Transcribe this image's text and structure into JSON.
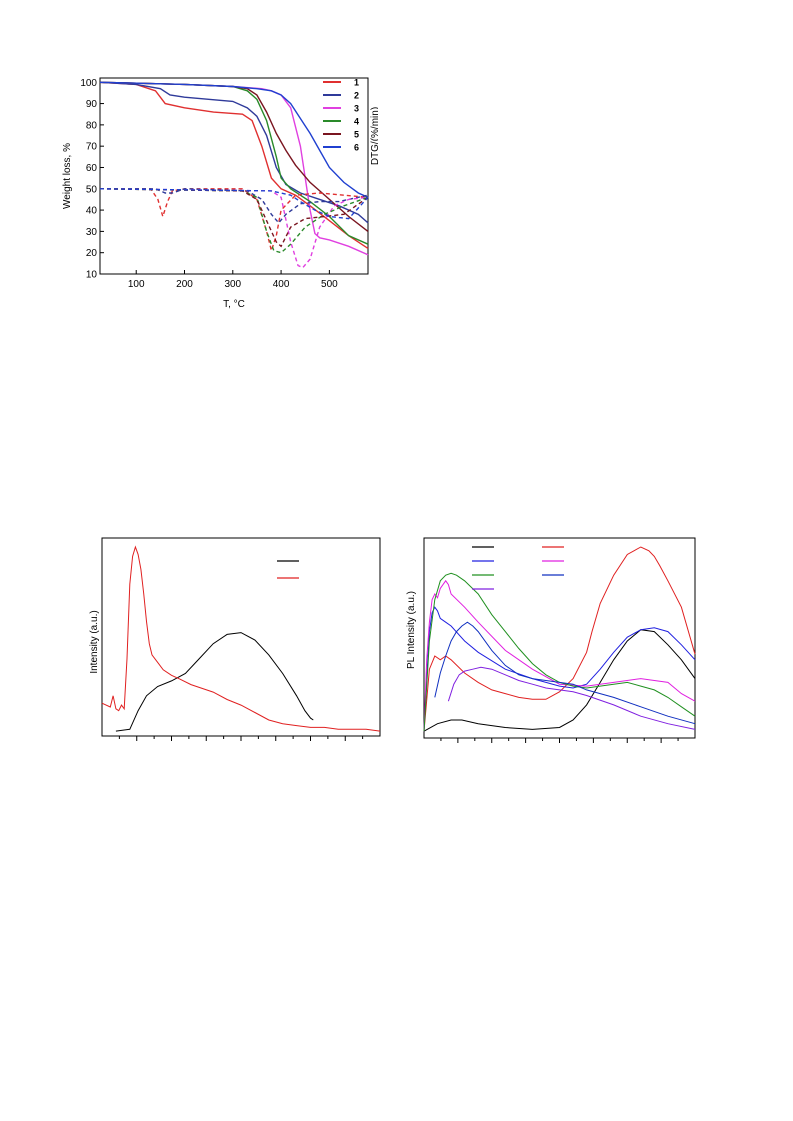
{
  "chart_data": [
    {
      "type": "line",
      "xlabel": "T, °C",
      "ylabel": "Weight loss, %",
      "y2label": "DTG/(%/min)",
      "xlim": [
        25,
        580
      ],
      "ylim": [
        10,
        102
      ],
      "xticks": [
        100,
        200,
        300,
        400,
        500
      ],
      "yticks": [
        10,
        20,
        30,
        40,
        50,
        60,
        70,
        80,
        90,
        100
      ],
      "legend_position": "top-right",
      "series": [
        {
          "name": "1",
          "color": "#e03030",
          "style": "solid",
          "x": [
            25,
            100,
            140,
            160,
            200,
            260,
            320,
            340,
            360,
            380,
            400,
            430,
            460,
            500,
            540,
            580
          ],
          "y": [
            100,
            99,
            96,
            90,
            88,
            86,
            85,
            82,
            70,
            55,
            50,
            47,
            42,
            35,
            28,
            22
          ]
        },
        {
          "name": "2",
          "color": "#2f3a9a",
          "style": "solid",
          "x": [
            25,
            100,
            150,
            170,
            200,
            250,
            300,
            330,
            350,
            370,
            390,
            410,
            440,
            480,
            520,
            560,
            580
          ],
          "y": [
            100,
            99,
            97,
            94,
            93,
            92,
            91,
            88,
            84,
            75,
            60,
            52,
            48,
            45,
            42,
            38,
            34
          ]
        },
        {
          "name": "3",
          "color": "#e040e0",
          "style": "solid",
          "x": [
            25,
            200,
            300,
            360,
            380,
            400,
            420,
            440,
            460,
            470,
            480,
            500,
            540,
            580
          ],
          "y": [
            100,
            99,
            98,
            97,
            96,
            94,
            88,
            70,
            40,
            29,
            27,
            26,
            23,
            19
          ]
        },
        {
          "name": "4",
          "color": "#2a8a2a",
          "style": "solid",
          "x": [
            25,
            200,
            300,
            330,
            350,
            370,
            390,
            400,
            420,
            460,
            500,
            540,
            580
          ],
          "y": [
            100,
            99,
            98,
            96,
            92,
            82,
            65,
            55,
            50,
            44,
            37,
            28,
            24
          ]
        },
        {
          "name": "5",
          "color": "#7a1520",
          "style": "solid",
          "x": [
            25,
            200,
            300,
            330,
            350,
            370,
            390,
            410,
            430,
            460,
            500,
            540,
            580
          ],
          "y": [
            100,
            99,
            98,
            97,
            94,
            86,
            76,
            68,
            61,
            53,
            45,
            37,
            30
          ]
        },
        {
          "name": "6",
          "color": "#2040d0",
          "style": "solid",
          "x": [
            25,
            200,
            300,
            350,
            380,
            400,
            420,
            440,
            460,
            480,
            500,
            530,
            560,
            580
          ],
          "y": [
            100,
            99,
            98,
            97,
            96,
            94,
            90,
            83,
            76,
            68,
            60,
            53,
            48,
            46
          ]
        },
        {
          "name": "1",
          "color": "#e03030",
          "style": "dashed",
          "x": [
            25,
            130,
            145,
            155,
            165,
            175,
            200,
            320,
            350,
            370,
            380,
            390,
            400,
            430,
            480,
            530,
            580
          ],
          "y": [
            50,
            50,
            45,
            37,
            44,
            49,
            50,
            50,
            45,
            30,
            21,
            28,
            40,
            47,
            48,
            47,
            46
          ]
        },
        {
          "name": "2",
          "color": "#2f3a9a",
          "style": "dashed",
          "x": [
            25,
            140,
            160,
            175,
            200,
            330,
            360,
            380,
            395,
            410,
            440,
            480,
            520,
            560,
            580
          ],
          "y": [
            50,
            50,
            48,
            48,
            50,
            49,
            45,
            38,
            34,
            38,
            43,
            44,
            44,
            46,
            47
          ]
        },
        {
          "name": "3",
          "color": "#e040e0",
          "style": "dashed",
          "x": [
            25,
            380,
            400,
            420,
            435,
            445,
            460,
            480,
            510,
            540,
            580
          ],
          "y": [
            50,
            49,
            46,
            25,
            14,
            13,
            17,
            32,
            42,
            45,
            46
          ]
        },
        {
          "name": "4",
          "color": "#2a8a2a",
          "style": "dashed",
          "x": [
            25,
            320,
            350,
            370,
            385,
            400,
            420,
            450,
            490,
            530,
            580
          ],
          "y": [
            50,
            49,
            46,
            30,
            21,
            20,
            24,
            32,
            38,
            42,
            46
          ]
        },
        {
          "name": "5",
          "color": "#7a1520",
          "style": "dashed",
          "x": [
            25,
            320,
            350,
            370,
            390,
            400,
            420,
            450,
            490,
            530,
            580
          ],
          "y": [
            50,
            49,
            45,
            35,
            25,
            23,
            32,
            36,
            37,
            38,
            46
          ]
        },
        {
          "name": "6",
          "color": "#2040d0",
          "style": "dashed",
          "x": [
            25,
            380,
            420,
            440,
            470,
            500,
            540,
            580
          ],
          "y": [
            50,
            49,
            47,
            44,
            40,
            37,
            36,
            46
          ]
        }
      ]
    },
    {
      "type": "line",
      "xlabel": "",
      "ylabel": "Intensity (a.u.)",
      "xlim": [
        0,
        100
      ],
      "ylim": [
        0,
        100
      ],
      "legend_position": "top-right",
      "legend_entries": [
        {
          "color": "#000000",
          "label": ""
        },
        {
          "color": "#e02020",
          "label": ""
        }
      ],
      "series": [
        {
          "color": "#000000",
          "x": [
            5,
            10,
            13,
            16,
            20,
            25,
            30,
            35,
            40,
            45,
            50,
            55,
            60,
            65,
            70,
            73,
            75,
            76
          ],
          "y": [
            1,
            2,
            12,
            20,
            25,
            28,
            32,
            40,
            48,
            53,
            54,
            50,
            42,
            32,
            20,
            12,
            8,
            7
          ]
        },
        {
          "color": "#e02020",
          "x": [
            0,
            3,
            4,
            5,
            6,
            7,
            8,
            9,
            10,
            11,
            12,
            13,
            14,
            15,
            16,
            17,
            18,
            20,
            22,
            25,
            28,
            32,
            36,
            40,
            45,
            50,
            55,
            60,
            65,
            70,
            75,
            80,
            85,
            90,
            95,
            100
          ],
          "y": [
            16,
            14,
            20,
            13,
            12,
            15,
            13,
            40,
            80,
            95,
            100,
            96,
            88,
            75,
            60,
            48,
            42,
            38,
            34,
            31,
            29,
            26,
            24,
            22,
            18,
            15,
            11,
            7,
            5,
            4,
            3,
            3,
            2,
            2,
            2,
            1
          ]
        }
      ]
    },
    {
      "type": "line",
      "xlabel": "",
      "ylabel": "PL Intensity (a.u.)",
      "xlim": [
        0,
        100
      ],
      "ylim": [
        0,
        100
      ],
      "legend_position": "top-left",
      "legend_entries": [
        {
          "color": "#000000",
          "label": ""
        },
        {
          "color": "#e02020",
          "label": ""
        },
        {
          "color": "#2020e0",
          "label": ""
        },
        {
          "color": "#e020e0",
          "label": ""
        },
        {
          "color": "#209020",
          "label": ""
        },
        {
          "color": "#1030c0",
          "label": ""
        },
        {
          "color": "#8020e0",
          "label": ""
        }
      ],
      "series": [
        {
          "color": "#000000",
          "x": [
            0,
            5,
            10,
            14,
            20,
            30,
            40,
            50,
            55,
            60,
            65,
            70,
            75,
            80,
            85,
            90,
            95,
            100
          ],
          "y": [
            2,
            6,
            8,
            8,
            6,
            4,
            3,
            4,
            8,
            16,
            28,
            40,
            50,
            56,
            55,
            48,
            40,
            30
          ]
        },
        {
          "color": "#e02020",
          "x": [
            0,
            2,
            4,
            6,
            8,
            10,
            15,
            20,
            25,
            30,
            35,
            40,
            45,
            50,
            55,
            60,
            62,
            65,
            70,
            75,
            80,
            83,
            85,
            87,
            90,
            95,
            100
          ],
          "y": [
            2,
            35,
            42,
            40,
            42,
            40,
            33,
            28,
            24,
            22,
            20,
            19,
            19,
            23,
            30,
            44,
            55,
            70,
            85,
            96,
            100,
            98,
            95,
            90,
            82,
            68,
            43
          ]
        },
        {
          "color": "#2020e0",
          "x": [
            0,
            1,
            2,
            3,
            4,
            5,
            6,
            8,
            10,
            15,
            20,
            30,
            40,
            50,
            55,
            60,
            65,
            70,
            75,
            80,
            85,
            90,
            95,
            100
          ],
          "y": [
            2,
            30,
            55,
            65,
            68,
            66,
            62,
            60,
            58,
            50,
            44,
            35,
            30,
            26,
            25,
            27,
            35,
            44,
            52,
            56,
            57,
            55,
            48,
            40
          ]
        },
        {
          "color": "#e020e0",
          "x": [
            0,
            1,
            2,
            3,
            4,
            5,
            6,
            7,
            8,
            9,
            10,
            15,
            20,
            30,
            40,
            50,
            60,
            70,
            80,
            90,
            95,
            100
          ],
          "y": [
            2,
            40,
            60,
            72,
            75,
            73,
            78,
            80,
            82,
            80,
            75,
            68,
            60,
            45,
            35,
            27,
            26,
            28,
            30,
            28,
            22,
            18
          ]
        },
        {
          "color": "#209020",
          "x": [
            0,
            2,
            4,
            6,
            8,
            10,
            12,
            15,
            20,
            25,
            30,
            35,
            40,
            45,
            50,
            55,
            60,
            65,
            70,
            75,
            80,
            85,
            90,
            95,
            100
          ],
          "y": [
            2,
            50,
            72,
            82,
            85,
            86,
            85,
            82,
            75,
            64,
            55,
            46,
            38,
            32,
            28,
            26,
            25,
            26,
            27,
            28,
            26,
            24,
            20,
            15,
            10
          ]
        },
        {
          "color": "#1030c0",
          "x": [
            4,
            6,
            8,
            10,
            12,
            14,
            16,
            18,
            20,
            25,
            30,
            35,
            40,
            45,
            50,
            55,
            60,
            70,
            80,
            90,
            100
          ],
          "y": [
            20,
            33,
            42,
            50,
            55,
            58,
            60,
            58,
            55,
            45,
            37,
            32,
            30,
            29,
            28,
            27,
            24,
            20,
            15,
            10,
            6
          ]
        },
        {
          "color": "#8020e0",
          "x": [
            9,
            11,
            13,
            15,
            18,
            21,
            25,
            30,
            35,
            40,
            45,
            50,
            55,
            60,
            70,
            80,
            90,
            100
          ],
          "y": [
            18,
            27,
            32,
            34,
            35,
            36,
            35,
            32,
            29,
            27,
            25,
            24,
            23,
            21,
            16,
            10,
            6,
            3
          ]
        }
      ]
    }
  ]
}
